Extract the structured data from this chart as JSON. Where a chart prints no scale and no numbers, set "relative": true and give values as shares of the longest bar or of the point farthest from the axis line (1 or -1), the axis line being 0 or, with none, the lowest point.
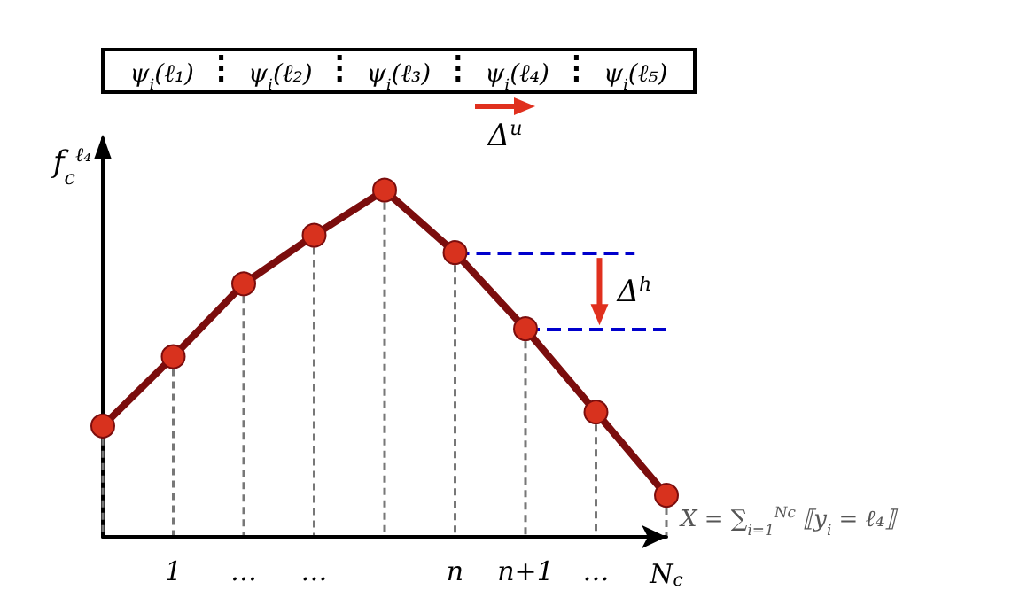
{
  "chart_data": {
    "type": "line",
    "relative": true,
    "grid": "x",
    "marker": "none",
    "line_style": "solid",
    "categories": [
      null,
      "1",
      "…",
      "…",
      null,
      "n",
      "n+1",
      "…",
      "N$_{c}$"
    ],
    "series": [
      {
        "color": "#7b0d0d",
        "values": [
          0.32,
          0.52,
          0.73,
          0.87,
          1,
          0.82,
          0.6,
          0.36,
          0.12
        ]
      },
      {
        "type": "lollipop",
        "color": "#d8321e",
        "line_style": "dashed",
        "marker": "circle",
        "values": [
          0.32,
          0.52,
          0.73,
          0.87,
          1,
          0.82,
          0.6,
          0.36,
          0.12
        ]
      }
    ],
    "ylabel": "f$_{c}$$^{ℓ₄}$",
    "xlabel": "X = ∑$_{i=1}$$^{Nc}$ ⟦y$_{i}$ = ℓ₄⟧",
    "ref_lines": [
      {
        "axis": "y",
        "value": 0.82,
        "color": "#0000cc",
        "line_style": "dashed"
      },
      {
        "axis": "y",
        "value": 0.6,
        "color": "#0000cc",
        "line_style": "dashed"
      }
    ],
    "annotations": [
      "ψ$_{i}$(ℓ₁)",
      "ψ$_{i}$(ℓ₂)",
      "ψ$_{i}$(ℓ₃)",
      "ψ$_{i}$(ℓ₄)",
      "ψ$_{i}$(ℓ₅)",
      "Δ$^{u}$",
      "Δ$^{h}$"
    ]
  }
}
